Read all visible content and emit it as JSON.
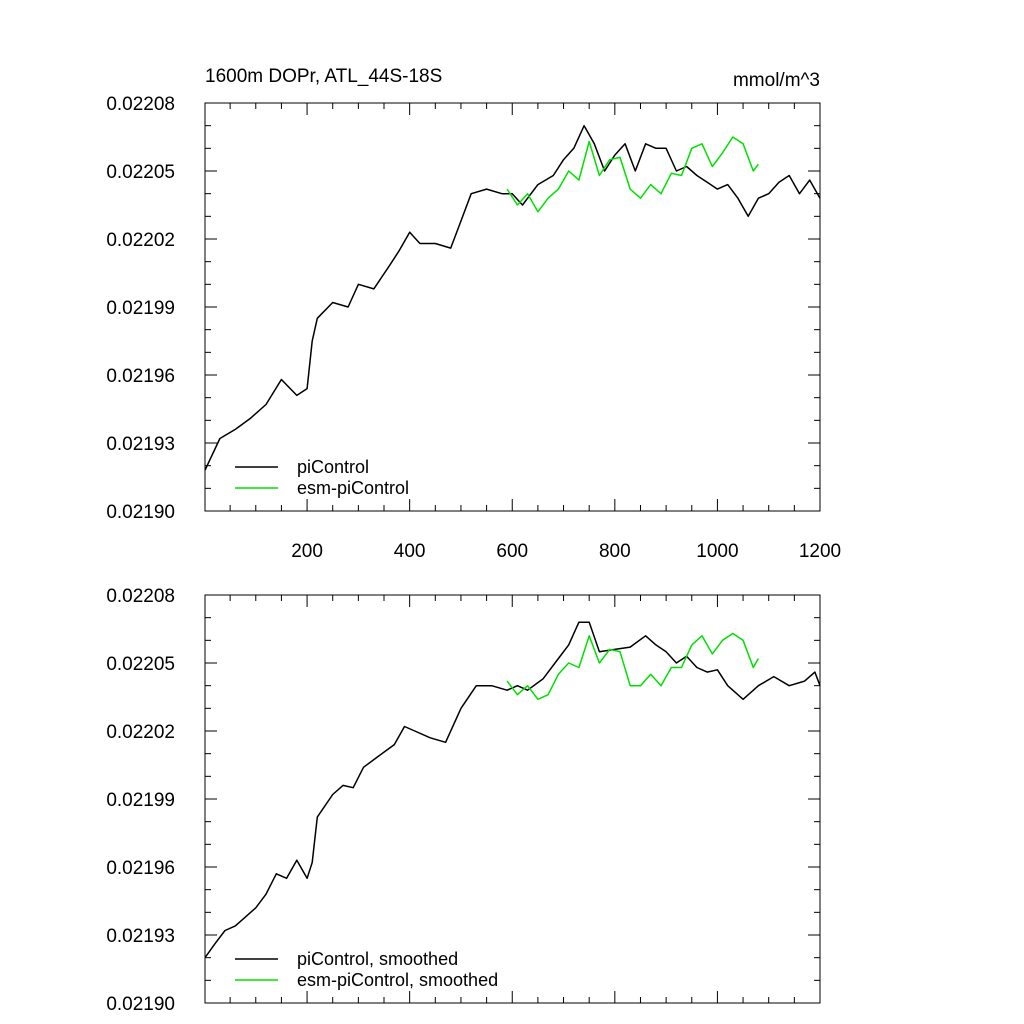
{
  "chart_data": [
    {
      "type": "line",
      "title": "1600m DOPr, ATL_44S-18S",
      "units_label": "mmol/m^3",
      "xlabel": "",
      "ylabel": "",
      "xlim": [
        1,
        1200
      ],
      "ylim": [
        0.0219,
        0.02208
      ],
      "x_ticks": [
        200,
        400,
        600,
        800,
        1000,
        1200
      ],
      "x_tick_labels": [
        "200",
        "400",
        "600",
        "800",
        "1000",
        "1200"
      ],
      "y_ticks": [
        0.0219,
        0.02193,
        0.02196,
        0.02199,
        0.02202,
        0.02205,
        0.02208
      ],
      "y_tick_labels": [
        "0.02190",
        "0.02193",
        "0.02196",
        "0.02199",
        "0.02202",
        "0.02205",
        "0.02208"
      ],
      "grid": false,
      "legend_position": "bottom-left",
      "series": [
        {
          "name": "piControl",
          "color": "#000000",
          "x": [
            1,
            30,
            60,
            90,
            120,
            150,
            180,
            200,
            210,
            220,
            250,
            280,
            300,
            330,
            360,
            380,
            400,
            420,
            450,
            480,
            500,
            520,
            550,
            580,
            600,
            620,
            650,
            680,
            700,
            720,
            740,
            760,
            780,
            800,
            820,
            840,
            860,
            880,
            900,
            920,
            940,
            960,
            980,
            1000,
            1020,
            1040,
            1060,
            1080,
            1100,
            1120,
            1140,
            1160,
            1180,
            1200
          ],
          "values": [
            0.021918,
            0.021932,
            0.021936,
            0.021941,
            0.021947,
            0.021958,
            0.021951,
            0.021954,
            0.021975,
            0.021985,
            0.021992,
            0.02199,
            0.022,
            0.021998,
            0.022008,
            0.022015,
            0.022023,
            0.022018,
            0.022018,
            0.022016,
            0.022028,
            0.02204,
            0.022042,
            0.02204,
            0.02204,
            0.022035,
            0.022044,
            0.022048,
            0.022055,
            0.02206,
            0.02207,
            0.022062,
            0.02205,
            0.022057,
            0.022062,
            0.02205,
            0.022062,
            0.02206,
            0.02206,
            0.02205,
            0.022052,
            0.022048,
            0.022045,
            0.022042,
            0.022044,
            0.022038,
            0.02203,
            0.022038,
            0.02204,
            0.022045,
            0.022048,
            0.02204,
            0.022046,
            0.022038
          ]
        },
        {
          "name": "esm-piControl",
          "color": "#00e000",
          "x": [
            590,
            610,
            630,
            650,
            670,
            690,
            710,
            730,
            750,
            770,
            790,
            810,
            830,
            850,
            870,
            890,
            910,
            930,
            950,
            970,
            990,
            1010,
            1030,
            1050,
            1070,
            1080
          ],
          "values": [
            0.022042,
            0.022035,
            0.02204,
            0.022032,
            0.022038,
            0.022042,
            0.02205,
            0.022046,
            0.022063,
            0.022048,
            0.022055,
            0.022056,
            0.022042,
            0.022038,
            0.022044,
            0.02204,
            0.022049,
            0.022048,
            0.02206,
            0.022062,
            0.022052,
            0.022058,
            0.022065,
            0.022062,
            0.02205,
            0.022053
          ]
        }
      ]
    },
    {
      "type": "line",
      "title": "",
      "xlabel": "",
      "ylabel": "",
      "xlim": [
        1,
        1200
      ],
      "ylim": [
        0.0219,
        0.02208
      ],
      "y_ticks": [
        0.0219,
        0.02193,
        0.02196,
        0.02199,
        0.02202,
        0.02205,
        0.02208
      ],
      "y_tick_labels": [
        "0.02190",
        "0.02193",
        "0.02196",
        "0.02199",
        "0.02202",
        "0.02205",
        "0.02208"
      ],
      "grid": false,
      "legend_position": "bottom-left",
      "series": [
        {
          "name": "piControl, smoothed",
          "color": "#000000",
          "x": [
            1,
            20,
            40,
            60,
            80,
            100,
            120,
            140,
            160,
            180,
            200,
            210,
            220,
            250,
            270,
            290,
            310,
            340,
            370,
            390,
            410,
            440,
            470,
            500,
            530,
            560,
            590,
            610,
            630,
            660,
            690,
            710,
            730,
            750,
            770,
            800,
            830,
            860,
            880,
            900,
            920,
            940,
            960,
            980,
            1000,
            1020,
            1050,
            1080,
            1110,
            1140,
            1170,
            1190,
            1200
          ],
          "values": [
            0.02192,
            0.021926,
            0.021932,
            0.021934,
            0.021938,
            0.021942,
            0.021948,
            0.021957,
            0.021955,
            0.021963,
            0.021955,
            0.021962,
            0.021982,
            0.021992,
            0.021996,
            0.021995,
            0.022004,
            0.022009,
            0.022014,
            0.022022,
            0.02202,
            0.022017,
            0.022015,
            0.02203,
            0.02204,
            0.02204,
            0.022038,
            0.02204,
            0.022038,
            0.022043,
            0.022052,
            0.022058,
            0.022068,
            0.022068,
            0.022055,
            0.022056,
            0.022057,
            0.022062,
            0.022058,
            0.022055,
            0.02205,
            0.022053,
            0.022048,
            0.022046,
            0.022047,
            0.02204,
            0.022034,
            0.02204,
            0.022044,
            0.02204,
            0.022042,
            0.022046,
            0.02204
          ]
        },
        {
          "name": "esm-piControl, smoothed",
          "color": "#00e000",
          "x": [
            590,
            610,
            630,
            650,
            670,
            690,
            710,
            730,
            750,
            770,
            790,
            810,
            830,
            850,
            870,
            890,
            910,
            930,
            950,
            970,
            990,
            1010,
            1030,
            1050,
            1070,
            1080
          ],
          "values": [
            0.022042,
            0.022036,
            0.02204,
            0.022034,
            0.022036,
            0.022045,
            0.02205,
            0.022048,
            0.022062,
            0.02205,
            0.022056,
            0.022055,
            0.02204,
            0.02204,
            0.022045,
            0.02204,
            0.022048,
            0.022048,
            0.022058,
            0.022062,
            0.022054,
            0.02206,
            0.022063,
            0.02206,
            0.022048,
            0.022052
          ]
        }
      ]
    }
  ]
}
